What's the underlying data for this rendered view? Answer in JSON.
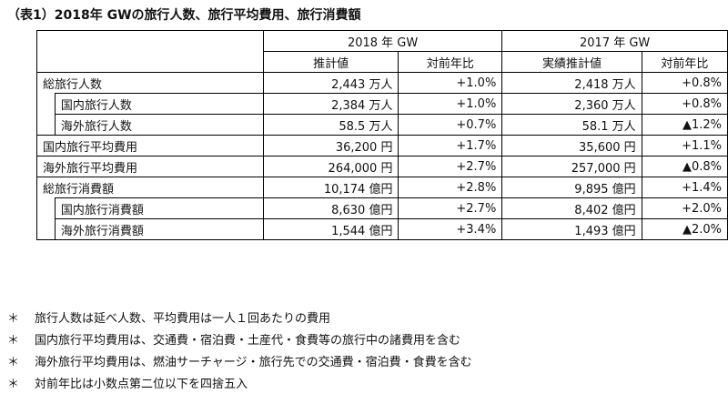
{
  "title": "（表1）2018年 GWの旅行人数、旅行平均費用、旅行消費額",
  "header": {
    "group_2018": "2018 年 GW",
    "group_2017": "2017 年 GW",
    "col_estimate": "推計値",
    "col_yoy": "対前年比",
    "col_actual_estimate": "実績推計値",
    "col_yoy_2017": "対前年比"
  },
  "rows": [
    {
      "label": "総旅行人数",
      "v2018": "2,443 万人",
      "yoy2018": "+1.0%",
      "v2017": "2,418 万人",
      "yoy2017": "+0.8%"
    },
    {
      "label": "国内旅行人数",
      "v2018": "2,384 万人",
      "yoy2018": "+1.0%",
      "v2017": "2,360 万人",
      "yoy2017": "+0.8%"
    },
    {
      "label": "海外旅行人数",
      "v2018": "58.5 万人",
      "yoy2018": "+0.7%",
      "v2017": "58.1 万人",
      "yoy2017": "▲1.2%"
    },
    {
      "label": "国内旅行平均費用",
      "v2018": "36,200 円",
      "yoy2018": "+1.7%",
      "v2017": "35,600 円",
      "yoy2017": "+1.1%"
    },
    {
      "label": "海外旅行平均費用",
      "v2018": "264,000 円",
      "yoy2018": "+2.7%",
      "v2017": "257,000 円",
      "yoy2017": "▲0.8%"
    },
    {
      "label": "総旅行消費額",
      "v2018": "10,174 億円",
      "yoy2018": "+2.8%",
      "v2017": "9,895 億円",
      "yoy2017": "+1.4%"
    },
    {
      "label": "国内旅行消費額",
      "v2018": "8,630 億円",
      "yoy2018": "+2.7%",
      "v2017": "8,402 億円",
      "yoy2017": "+2.0%"
    },
    {
      "label": "海外旅行消費額",
      "v2018": "1,544 億円",
      "yoy2018": "+3.4%",
      "v2017": "1,493 億円",
      "yoy2017": "▲2.0%"
    }
  ],
  "notes": [
    {
      "mark": "＊",
      "text": "旅行人数は延べ人数、平均費用は一人１回あたりの費用"
    },
    {
      "mark": "＊",
      "text": "国内旅行平均費用は、交通費・宿泊費・土産代・食費等の旅行中の諸費用を含む"
    },
    {
      "mark": "＊",
      "text": "海外旅行平均費用は、燃油サーチャージ・旅行先での交通費・宿泊費・食費を含む"
    },
    {
      "mark": "＊",
      "text": "対前年比は小数点第二位以下を四捨五入"
    }
  ]
}
